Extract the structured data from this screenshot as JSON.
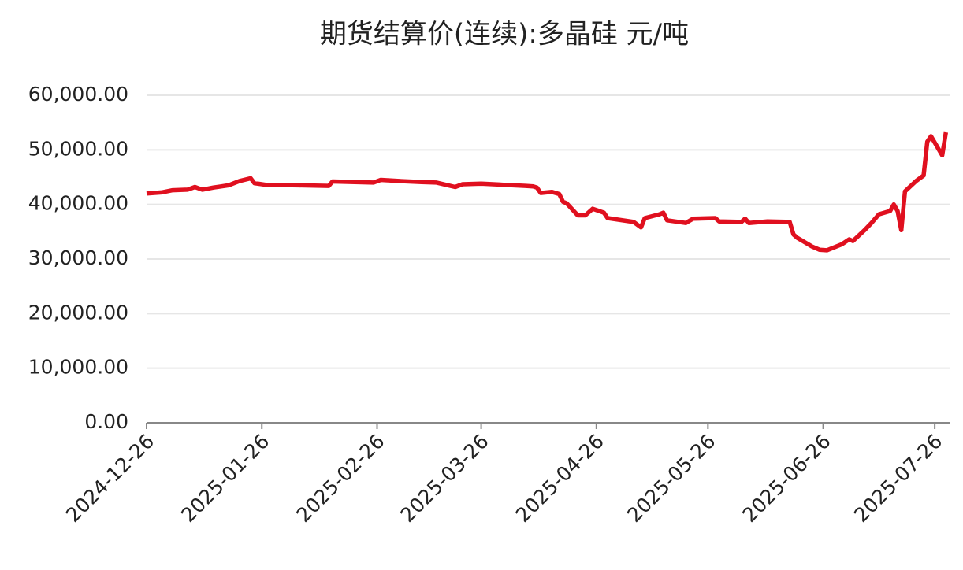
{
  "chart_data": {
    "type": "line",
    "title": "期货结算价(连续):多晶硅 元/吨",
    "x": [
      "2024-12-26",
      "2024-12-30",
      "2025-01-02",
      "2025-01-06",
      "2025-01-08",
      "2025-01-10",
      "2025-01-13",
      "2025-01-15",
      "2025-01-17",
      "2025-01-20",
      "2025-01-23",
      "2025-01-24",
      "2025-01-27",
      "2025-02-05",
      "2025-02-13",
      "2025-02-14",
      "2025-02-20",
      "2025-02-25",
      "2025-02-27",
      "2025-03-04",
      "2025-03-10",
      "2025-03-14",
      "2025-03-19",
      "2025-03-21",
      "2025-03-26",
      "2025-04-01",
      "2025-04-07",
      "2025-04-09",
      "2025-04-10",
      "2025-04-11",
      "2025-04-14",
      "2025-04-16",
      "2025-04-17",
      "2025-04-18",
      "2025-04-21",
      "2025-04-23",
      "2025-04-25",
      "2025-04-28",
      "2025-04-29",
      "2025-05-06",
      "2025-05-08",
      "2025-05-09",
      "2025-05-13",
      "2025-05-14",
      "2025-05-15",
      "2025-05-20",
      "2025-05-22",
      "2025-05-28",
      "2025-05-29",
      "2025-06-04",
      "2025-06-05",
      "2025-06-06",
      "2025-06-11",
      "2025-06-17",
      "2025-06-18",
      "2025-06-19",
      "2025-06-23",
      "2025-06-25",
      "2025-06-27",
      "2025-07-01",
      "2025-07-03",
      "2025-07-04",
      "2025-07-07",
      "2025-07-09",
      "2025-07-11",
      "2025-07-14",
      "2025-07-15",
      "2025-07-16",
      "2025-07-17",
      "2025-07-18",
      "2025-07-21",
      "2025-07-23",
      "2025-07-24",
      "2025-07-25",
      "2025-07-28",
      "2025-07-29"
    ],
    "series": [
      {
        "name": "期货结算价(连续):多晶硅",
        "color": "#e0101f",
        "values": [
          42000,
          42200,
          42600,
          42700,
          43200,
          42700,
          43100,
          43300,
          43500,
          44300,
          44800,
          43900,
          43600,
          43500,
          43400,
          44200,
          44100,
          44000,
          44500,
          44300,
          44100,
          44000,
          43200,
          43700,
          43800,
          43600,
          43400,
          43300,
          43100,
          42100,
          42300,
          41900,
          40500,
          40200,
          38000,
          38000,
          39200,
          38500,
          37500,
          36800,
          35800,
          37500,
          38200,
          38500,
          37100,
          36600,
          37400,
          37500,
          36900,
          36800,
          37400,
          36600,
          36900,
          36800,
          34500,
          33900,
          32300,
          31700,
          31600,
          32700,
          33600,
          33300,
          35200,
          36600,
          38200,
          38800,
          40000,
          38800,
          35300,
          42400,
          44300,
          45300,
          51500,
          52500,
          49000,
          53200
        ]
      }
    ],
    "xlim": [
      "2024-12-26",
      "2025-07-30"
    ],
    "xticks": [
      "2024-12-26",
      "2025-01-26",
      "2025-02-26",
      "2025-03-26",
      "2025-04-26",
      "2025-05-26",
      "2025-06-26",
      "2025-07-26"
    ],
    "ylim": [
      0,
      60000
    ],
    "yticks": [
      {
        "value": 0,
        "label": "0.00"
      },
      {
        "value": 10000,
        "label": "10,000.00"
      },
      {
        "value": 20000,
        "label": "20,000.00"
      },
      {
        "value": 30000,
        "label": "30,000.00"
      },
      {
        "value": 40000,
        "label": "40,000.00"
      },
      {
        "value": 50000,
        "label": "50,000.00"
      },
      {
        "value": 60000,
        "label": "60,000.00"
      }
    ],
    "grid": true
  }
}
